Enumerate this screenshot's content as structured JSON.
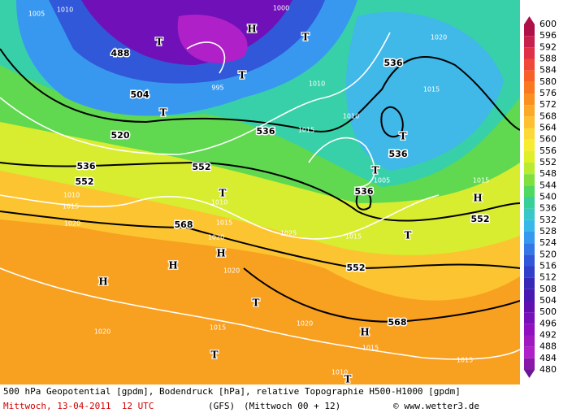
{
  "map": {
    "labels": [
      "1005",
      "1010",
      "488",
      "T",
      "H",
      "1000",
      "T",
      "T",
      "504",
      "995",
      "520",
      "536",
      "536",
      "T",
      "536",
      "552",
      "536",
      "552",
      "T",
      "536",
      "H",
      "552",
      "T",
      "568",
      "H",
      "H",
      "H",
      "552",
      "T",
      "568",
      "T",
      "H",
      "T",
      "T",
      "1020",
      "1015",
      "1020",
      "1015",
      "1015",
      "1010",
      "1015",
      "1020",
      "1015",
      "1010",
      "1015",
      "1010",
      "1005",
      "1015",
      "1020",
      "1010",
      "1020",
      "1015",
      "T",
      "1015",
      "1025",
      "1020",
      "1010"
    ]
  },
  "colorbar": {
    "labels": [
      600,
      596,
      592,
      588,
      584,
      580,
      576,
      572,
      568,
      564,
      560,
      556,
      552,
      548,
      544,
      540,
      536,
      532,
      528,
      524,
      520,
      516,
      512,
      508,
      504,
      500,
      496,
      492,
      488,
      484,
      480
    ],
    "colors": [
      "#b0104a",
      "#c8204e",
      "#e03048",
      "#f04838",
      "#f86028",
      "#fa7820",
      "#fb9020",
      "#fca828",
      "#fcc030",
      "#fcd838",
      "#f8ec30",
      "#e0f028",
      "#b8ec30",
      "#80e040",
      "#50d860",
      "#38d098",
      "#38c8c8",
      "#38b8e8",
      "#3898f0",
      "#3478e8",
      "#3058d8",
      "#3040c8",
      "#3828b8",
      "#4818b0",
      "#6010b0",
      "#7810b8",
      "#9010c0",
      "#a018c0",
      "#b020c8",
      "#8818a8",
      "#681890"
    ]
  },
  "footer": {
    "line1": "500 hPa Geopotential [gpdm], Bodendruck [hPa], relative Topographie H500-H1000 [gpdm]",
    "date": "Mittwoch, 13-04-2011  12 UTC",
    "model": "(GFS)",
    "run": "(Mittwoch 00 + 12)",
    "copyright": "© www.wetter3.de"
  }
}
